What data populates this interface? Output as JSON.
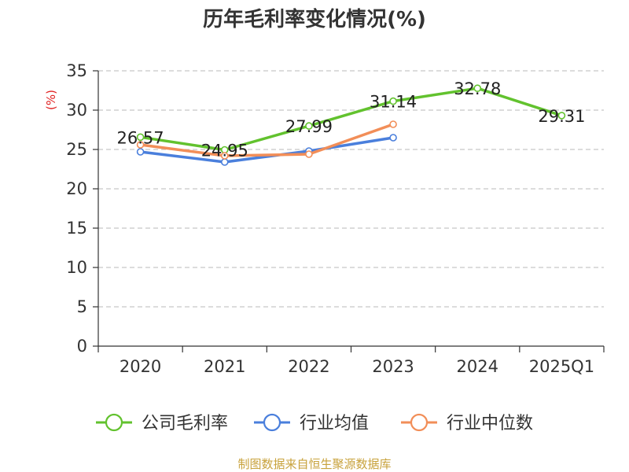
{
  "chart_data": {
    "type": "line",
    "title": "历年毛利率变化情况(%)",
    "xlabel": "",
    "ylabel": "(%)",
    "categories": [
      "2020",
      "2021",
      "2022",
      "2023",
      "2024",
      "2025Q1"
    ],
    "ylim": [
      0,
      35
    ],
    "yticks": [
      0,
      5,
      10,
      15,
      20,
      25,
      30,
      35
    ],
    "grid": true,
    "legend_position": "bottom",
    "series": [
      {
        "name": "公司毛利率",
        "color": "#62c22e",
        "values": [
          26.57,
          24.95,
          27.99,
          31.14,
          32.78,
          29.31
        ],
        "show_labels": true
      },
      {
        "name": "行业均值",
        "color": "#4a7fdc",
        "values": [
          24.7,
          23.4,
          24.8,
          26.5,
          null,
          null
        ],
        "show_labels": false
      },
      {
        "name": "行业中位数",
        "color": "#f28e58",
        "values": [
          25.6,
          24.2,
          24.4,
          28.2,
          null,
          null
        ],
        "show_labels": false
      }
    ],
    "data_labels": [
      "26.57",
      "24.95",
      "27.99",
      "31.14",
      "32.78",
      "29.31"
    ],
    "source": "制图数据来自恒生聚源数据库"
  }
}
